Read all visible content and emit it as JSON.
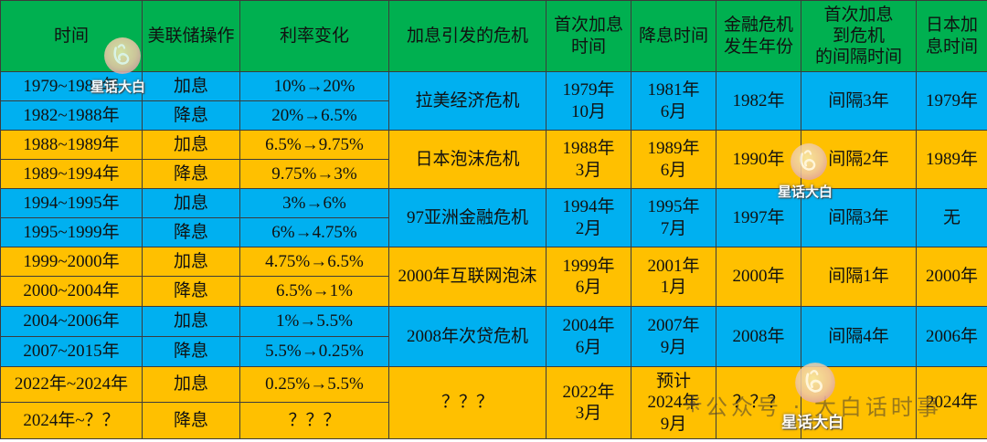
{
  "colors": {
    "header": "#00B050",
    "blue": "#00B0F0",
    "orange": "#FFC000",
    "grid": "#3c3c3c"
  },
  "header": {
    "period": "时间",
    "action": "美联储操作",
    "rate_change": "利率变化",
    "crisis": "加息引发的危机",
    "first_hike": "首次加息\n时间",
    "cut": "降息时间",
    "crisis_year": "金融危机\n发生年份",
    "interval": "首次加息\n到危机\n的间隔时间",
    "japan_hike": "日本加\n息时间"
  },
  "groups": [
    {
      "rows": [
        {
          "period": "1979~1981年",
          "action": "加息",
          "rate": "10%→20%"
        },
        {
          "period": "1982~1988年",
          "action": "降息",
          "rate": "20%→6.5%"
        }
      ],
      "crisis": "拉美经济危机",
      "first_hike": "1979年\n10月",
      "cut": "1981年\n6月",
      "crisis_year": "1982年",
      "interval": "间隔3年",
      "japan_hike": "1979年"
    },
    {
      "rows": [
        {
          "period": "1988~1989年",
          "action": "加息",
          "rate": "6.5%→9.75%"
        },
        {
          "period": "1989~1994年",
          "action": "降息",
          "rate": "9.75%→3%"
        }
      ],
      "crisis": "日本泡沫危机",
      "first_hike": "1988年\n3月",
      "cut": "1989年\n6月",
      "crisis_year": "1990年",
      "interval": "间隔2年",
      "japan_hike": "1989年"
    },
    {
      "rows": [
        {
          "period": "1994~1995年",
          "action": "加息",
          "rate": "3%→6%"
        },
        {
          "period": "1995~1999年",
          "action": "降息",
          "rate": "6%→4.75%"
        }
      ],
      "crisis": "97亚洲金融危机",
      "first_hike": "1994年\n2月",
      "cut": "1995年\n7月",
      "crisis_year": "1997年",
      "interval": "间隔3年",
      "japan_hike": "无"
    },
    {
      "rows": [
        {
          "period": "1999~2000年",
          "action": "加息",
          "rate": "4.75%→6.5%"
        },
        {
          "period": "2000~2004年",
          "action": "降息",
          "rate": "6.5%→1%"
        }
      ],
      "crisis": "2000年互联网泡沫",
      "first_hike": "1999年\n6月",
      "cut": "2001年\n1月",
      "crisis_year": "2000年",
      "interval": "间隔1年",
      "japan_hike": "2000年"
    },
    {
      "rows": [
        {
          "period": "2004~2006年",
          "action": "加息",
          "rate": "1%→5.5%"
        },
        {
          "period": "2007~2015年",
          "action": "降息",
          "rate": "5.5%→0.25%"
        }
      ],
      "crisis": "2008年次贷危机",
      "first_hike": "2004年\n6月",
      "cut": "2007年\n9月",
      "crisis_year": "2008年",
      "interval": "间隔4年",
      "japan_hike": "2006年"
    },
    {
      "rows": [
        {
          "period": "2022年~2024年",
          "action": "加息",
          "rate": "0.25%→5.5%"
        },
        {
          "period": "2024年~？？",
          "action": "降息",
          "rate": "？？？"
        }
      ],
      "crisis": "？？？",
      "first_hike": "2022年\n3月",
      "cut": "预计\n2024年\n9月",
      "crisis_year": "？？？",
      "japan_hike": "2024年"
    }
  ],
  "watermarks": {
    "brand": "星话大白",
    "account": "公众号 · 大白话时事",
    "logo_icon": "rabbit-logo-icon",
    "account_icon": "official-account-icon"
  }
}
